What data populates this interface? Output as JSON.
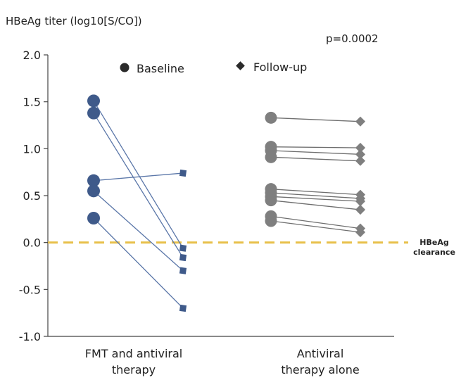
{
  "chart_data": {
    "type": "scatter",
    "ylabel": "HBeAg titer (log10[S/CO])",
    "annotation": "p=0.0002",
    "ylim": [
      -1.0,
      2.0
    ],
    "yticks": [
      "2.0",
      "1.5",
      "1.0",
      "0.5",
      "0.0",
      "-0.5",
      "-1.0"
    ],
    "ytick_values": [
      2.0,
      1.5,
      1.0,
      0.5,
      0.0,
      -0.5,
      -1.0
    ],
    "legend": {
      "position": "top",
      "baseline_label": "Baseline",
      "followup_label": "Follow-up"
    },
    "threshold": {
      "value": 0.0,
      "label_line1": "HBeAg",
      "label_line2": "clearance",
      "color": "#e8c04a"
    },
    "groups": [
      {
        "label_line1": "FMT and antiviral",
        "label_line2": "therapy",
        "color": "#3f5a8a",
        "line_color": "#5a76a8",
        "pairs": [
          {
            "baseline": 1.51,
            "followup": -0.06
          },
          {
            "baseline": 1.38,
            "followup": -0.16
          },
          {
            "baseline": 0.66,
            "followup": 0.74
          },
          {
            "baseline": 0.55,
            "followup": -0.3
          },
          {
            "baseline": 0.26,
            "followup": -0.7
          }
        ]
      },
      {
        "label_line1": "Antiviral",
        "label_line2": "therapy alone",
        "color": "#7f7f7f",
        "line_color": "#6e6e6e",
        "pairs": [
          {
            "baseline": 1.33,
            "followup": 1.29
          },
          {
            "baseline": 1.02,
            "followup": 1.01
          },
          {
            "baseline": 0.98,
            "followup": 0.94
          },
          {
            "baseline": 0.91,
            "followup": 0.87
          },
          {
            "baseline": 0.57,
            "followup": 0.51
          },
          {
            "baseline": 0.53,
            "followup": 0.47
          },
          {
            "baseline": 0.49,
            "followup": 0.44
          },
          {
            "baseline": 0.45,
            "followup": 0.35
          },
          {
            "baseline": 0.28,
            "followup": 0.15
          },
          {
            "baseline": 0.23,
            "followup": 0.11
          }
        ]
      }
    ],
    "grid": false
  }
}
